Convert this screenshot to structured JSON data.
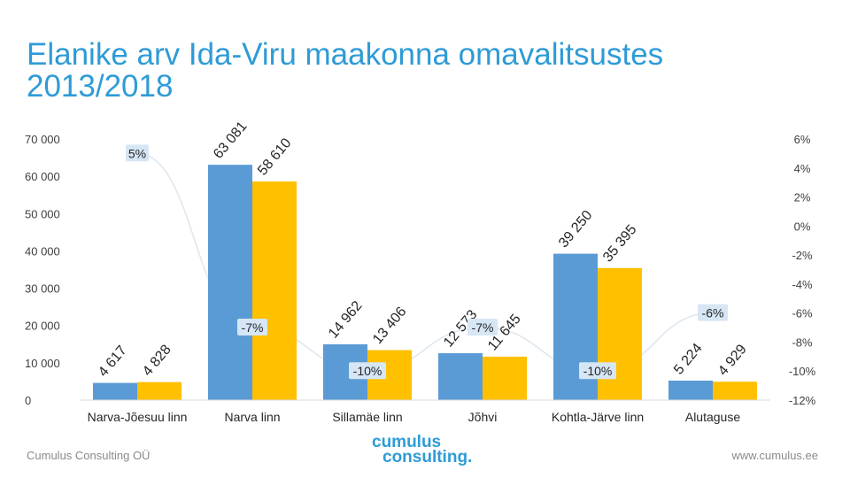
{
  "title_line1": "Elanike arv Ida-Viru maakonna omavalitsustes",
  "title_line2": "2013/2018",
  "footer": {
    "company": "Cumulus Consulting OÜ",
    "logo_line1": "cumulus",
    "logo_line2": "consulting.",
    "website": "www.cumulus.ee"
  },
  "chart_data": {
    "type": "bar",
    "categories": [
      "Narva-Jõesuu linn",
      "Narva linn",
      "Sillamäe linn",
      "Jõhvi",
      "Kohtla-Järve linn",
      "Alutaguse"
    ],
    "series": [
      {
        "name": "",
        "color": "#5b9bd5",
        "values": [
          4617,
          63081,
          14962,
          12573,
          39250,
          5224
        ]
      },
      {
        "name": "",
        "color": "#ffc000",
        "values": [
          4828,
          58610,
          13406,
          11645,
          35395,
          4929
        ]
      }
    ],
    "value_labels": [
      [
        "4 617",
        "63 081",
        "14 962",
        "12 573",
        "39 250",
        "5 224"
      ],
      [
        "4 828",
        "58 610",
        "13 406",
        "11 645",
        "35 395",
        "4 929"
      ]
    ],
    "change_pct": [
      5,
      -7,
      -10,
      -7,
      -10,
      -6
    ],
    "change_labels": [
      "5%",
      "-7%",
      "-10%",
      "-7%",
      "-10%",
      "-6%"
    ],
    "y_left": {
      "min": 0,
      "max": 70000,
      "ticks": [
        "0",
        "10 000",
        "20 000",
        "30 000",
        "40 000",
        "50 000",
        "60 000",
        "70 000"
      ]
    },
    "y_right": {
      "min": -12,
      "max": 6,
      "ticks": [
        "-12%",
        "-10%",
        "-8%",
        "-6%",
        "-4%",
        "-2%",
        "0%",
        "2%",
        "4%",
        "6%"
      ]
    },
    "grid": false,
    "legend": "none"
  }
}
